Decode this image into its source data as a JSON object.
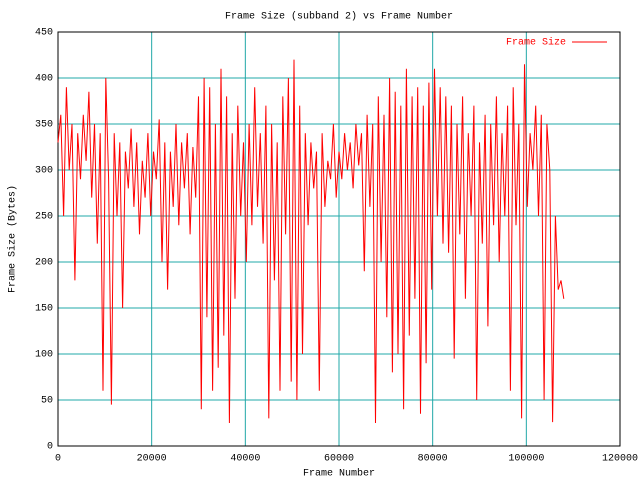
{
  "chart_data": {
    "type": "line",
    "title": "Frame Size (subband 2) vs Frame Number",
    "x_label": "Frame Number",
    "y_label": "Frame Size (Bytes)",
    "xlim": [
      0,
      120000
    ],
    "xticks": [
      0,
      20000,
      40000,
      60000,
      80000,
      100000,
      120000
    ],
    "ylim": [
      0,
      450
    ],
    "yticks": [
      0,
      50,
      100,
      150,
      200,
      250,
      300,
      350,
      400,
      450
    ],
    "grid": true,
    "legend": "top-right",
    "x": [
      0,
      600,
      1200,
      1800,
      2400,
      3000,
      3600,
      4200,
      4800,
      5400,
      6000,
      6600,
      7200,
      7800,
      8400,
      9000,
      9600,
      10200,
      10800,
      11400,
      12000,
      12600,
      13200,
      13800,
      14400,
      15000,
      15600,
      16200,
      16800,
      17400,
      18000,
      18600,
      19200,
      19800,
      20400,
      21000,
      21600,
      22200,
      22800,
      23400,
      24000,
      24600,
      25200,
      25800,
      26400,
      27000,
      27600,
      28200,
      28800,
      29400,
      30000,
      30600,
      31200,
      31800,
      32400,
      33000,
      33600,
      34200,
      34800,
      35400,
      36000,
      36600,
      37200,
      37800,
      38400,
      39000,
      39600,
      40200,
      40800,
      41400,
      42000,
      42600,
      43200,
      43800,
      44400,
      45000,
      45600,
      46200,
      46800,
      47400,
      48000,
      48600,
      49200,
      49800,
      50400,
      51000,
      51600,
      52200,
      52800,
      53400,
      54000,
      54600,
      55200,
      55800,
      56400,
      57000,
      57600,
      58200,
      58800,
      59400,
      60000,
      60600,
      61200,
      61800,
      62400,
      63000,
      63600,
      64200,
      64800,
      65400,
      66000,
      66600,
      67200,
      67800,
      68400,
      69000,
      69600,
      70200,
      70800,
      71400,
      72000,
      72600,
      73200,
      73800,
      74400,
      75000,
      75600,
      76200,
      76800,
      77400,
      78000,
      78600,
      79200,
      79800,
      80400,
      81000,
      81600,
      82200,
      82800,
      83400,
      84000,
      84600,
      85200,
      85800,
      86400,
      87000,
      87600,
      88200,
      88800,
      89400,
      90000,
      90600,
      91200,
      91800,
      92400,
      93000,
      93600,
      94200,
      94800,
      95400,
      96000,
      96600,
      97200,
      97800,
      98400,
      99000,
      99600,
      100200,
      100800,
      101400,
      102000,
      102600,
      103200,
      103800,
      104400,
      105000,
      105600,
      106200,
      106800,
      107400,
      108000
    ],
    "series": [
      {
        "name": "Frame Size",
        "color": "#ff0000",
        "values": [
          330,
          360,
          250,
          390,
          300,
          350,
          180,
          340,
          290,
          360,
          310,
          385,
          270,
          350,
          220,
          340,
          60,
          400,
          290,
          45,
          340,
          250,
          330,
          150,
          320,
          280,
          345,
          260,
          330,
          230,
          310,
          270,
          340,
          250,
          320,
          290,
          355,
          200,
          330,
          170,
          320,
          260,
          350,
          240,
          330,
          280,
          340,
          230,
          325,
          270,
          380,
          40,
          400,
          140,
          390,
          60,
          350,
          85,
          410,
          120,
          380,
          25,
          340,
          160,
          370,
          250,
          330,
          200,
          350,
          240,
          390,
          260,
          340,
          220,
          370,
          30,
          350,
          180,
          330,
          60,
          380,
          230,
          400,
          70,
          420,
          50,
          370,
          100,
          340,
          240,
          330,
          280,
          320,
          60,
          340,
          260,
          310,
          290,
          350,
          270,
          320,
          290,
          340,
          300,
          330,
          280,
          350,
          305,
          340,
          190,
          360,
          260,
          350,
          25,
          380,
          200,
          360,
          140,
          400,
          80,
          385,
          100,
          370,
          40,
          410,
          120,
          380,
          160,
          390,
          35,
          370,
          90,
          395,
          170,
          410,
          250,
          390,
          220,
          380,
          210,
          370,
          95,
          350,
          230,
          380,
          160,
          340,
          250,
          370,
          50,
          330,
          220,
          360,
          130,
          350,
          240,
          380,
          200,
          340,
          250,
          370,
          60,
          390,
          240,
          350,
          30,
          415,
          260,
          340,
          300,
          370,
          250,
          360,
          50,
          350,
          300,
          26,
          250,
          170,
          180,
          160
        ]
      }
    ]
  }
}
